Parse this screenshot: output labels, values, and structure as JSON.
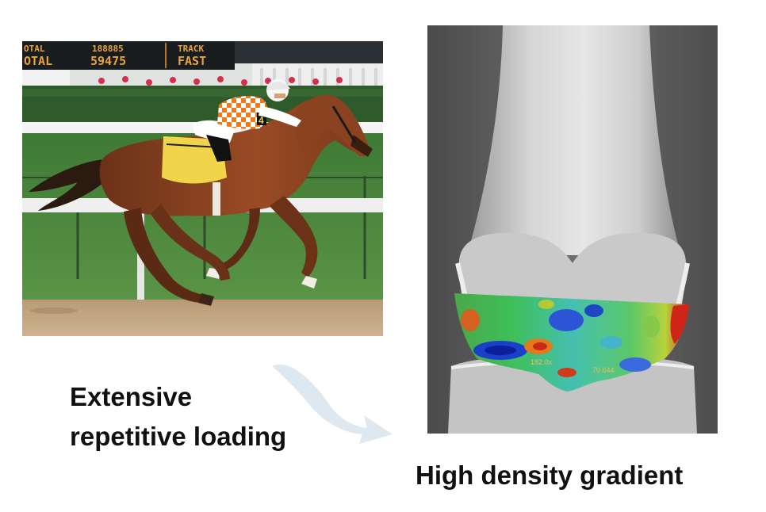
{
  "images": {
    "racehorse_photo": {
      "tote_board": {
        "row1": [
          "OTAL",
          "188885",
          "TRACK"
        ],
        "row2": [
          "OTAL",
          "59475",
          "FAST"
        ]
      },
      "saddle_number": "4"
    },
    "xray_image": {
      "map_labels": [
        "182.0x",
        "70.644"
      ]
    }
  },
  "captions": {
    "left_line1": "Extensive",
    "left_line2": "repetitive loading",
    "right": "High density gradient"
  },
  "colors": {
    "arrow": "#dde8f1",
    "text": "#111111"
  }
}
